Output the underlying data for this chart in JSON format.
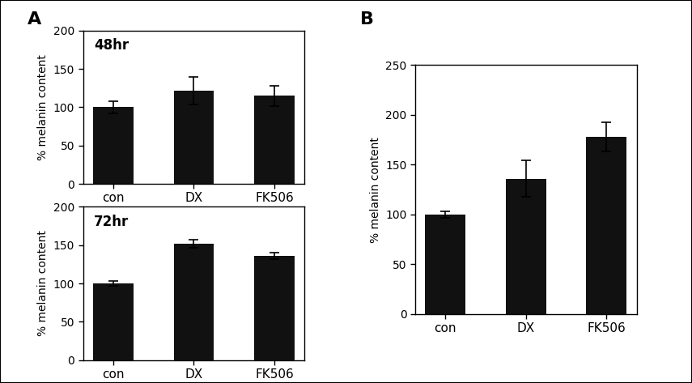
{
  "panel_A_48hr": {
    "categories": [
      "con",
      "DX",
      "FK506"
    ],
    "values": [
      100,
      122,
      115
    ],
    "errors": [
      8,
      18,
      13
    ],
    "title": "48hr",
    "ylabel": "% melanin content",
    "ylim": [
      0,
      200
    ],
    "yticks": [
      0,
      50,
      100,
      150,
      200
    ]
  },
  "panel_A_72hr": {
    "categories": [
      "con",
      "DX",
      "FK506"
    ],
    "values": [
      100,
      152,
      136
    ],
    "errors": [
      3,
      5,
      4
    ],
    "title": "72hr",
    "ylabel": "% melanin content",
    "ylim": [
      0,
      200
    ],
    "yticks": [
      0,
      50,
      100,
      150,
      200
    ]
  },
  "panel_B": {
    "categories": [
      "con",
      "DX",
      "FK506"
    ],
    "values": [
      100,
      136,
      178
    ],
    "errors": [
      3,
      18,
      15
    ],
    "ylabel": "% melanin content",
    "ylim": [
      0,
      250
    ],
    "yticks": [
      0,
      50,
      100,
      150,
      200,
      250
    ]
  },
  "bar_color": "#111111",
  "bar_width": 0.5,
  "label_A": "A",
  "label_B": "B",
  "figure_background": "#ffffff",
  "outer_border_color": "#cccccc"
}
